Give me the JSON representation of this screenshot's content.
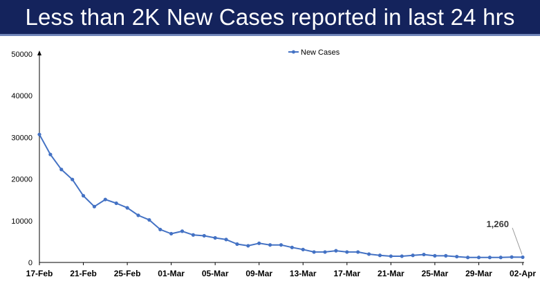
{
  "header": {
    "title": "Less than 2K New Cases reported in last 24 hrs"
  },
  "colors": {
    "banner": "#14235c",
    "series": "#4472c4"
  },
  "chart_data": {
    "type": "line",
    "title": "Less than 2K New Cases reported in last 24 hrs",
    "ylim": [
      0,
      50000
    ],
    "yticks": [
      "0",
      "10000",
      "20000",
      "30000",
      "40000",
      "50000"
    ],
    "xticks": [
      "17-Feb",
      "21-Feb",
      "25-Feb",
      "01-Mar",
      "05-Mar",
      "09-Mar",
      "13-Mar",
      "17-Mar",
      "21-Mar",
      "25-Mar",
      "29-Mar",
      "02-Apr"
    ],
    "legend": {
      "position": "top-center",
      "entries": [
        "New Cases"
      ]
    },
    "grid": false,
    "series": [
      {
        "name": "New Cases",
        "x": [
          "17-Feb",
          "18-Feb",
          "19-Feb",
          "20-Feb",
          "21-Feb",
          "22-Feb",
          "23-Feb",
          "24-Feb",
          "25-Feb",
          "26-Feb",
          "27-Feb",
          "28-Feb",
          "01-Mar",
          "02-Mar",
          "03-Mar",
          "04-Mar",
          "05-Mar",
          "06-Mar",
          "07-Mar",
          "08-Mar",
          "09-Mar",
          "10-Mar",
          "11-Mar",
          "12-Mar",
          "13-Mar",
          "14-Mar",
          "15-Mar",
          "16-Mar",
          "17-Mar",
          "18-Mar",
          "19-Mar",
          "20-Mar",
          "21-Mar",
          "22-Mar",
          "23-Mar",
          "24-Mar",
          "25-Mar",
          "26-Mar",
          "27-Mar",
          "28-Mar",
          "29-Mar",
          "30-Mar",
          "31-Mar",
          "01-Apr",
          "02-Apr"
        ],
        "values": [
          30700,
          25900,
          22300,
          19900,
          16000,
          13400,
          15100,
          14200,
          13100,
          11300,
          10200,
          7900,
          6900,
          7500,
          6600,
          6400,
          5900,
          5500,
          4400,
          4000,
          4600,
          4200,
          4200,
          3600,
          3100,
          2500,
          2500,
          2800,
          2500,
          2500,
          2000,
          1700,
          1500,
          1500,
          1700,
          1900,
          1600,
          1600,
          1400,
          1200,
          1200,
          1200,
          1200,
          1300,
          1260
        ]
      }
    ],
    "annotations": [
      {
        "x": "02-Apr",
        "text": "1,260"
      }
    ]
  }
}
